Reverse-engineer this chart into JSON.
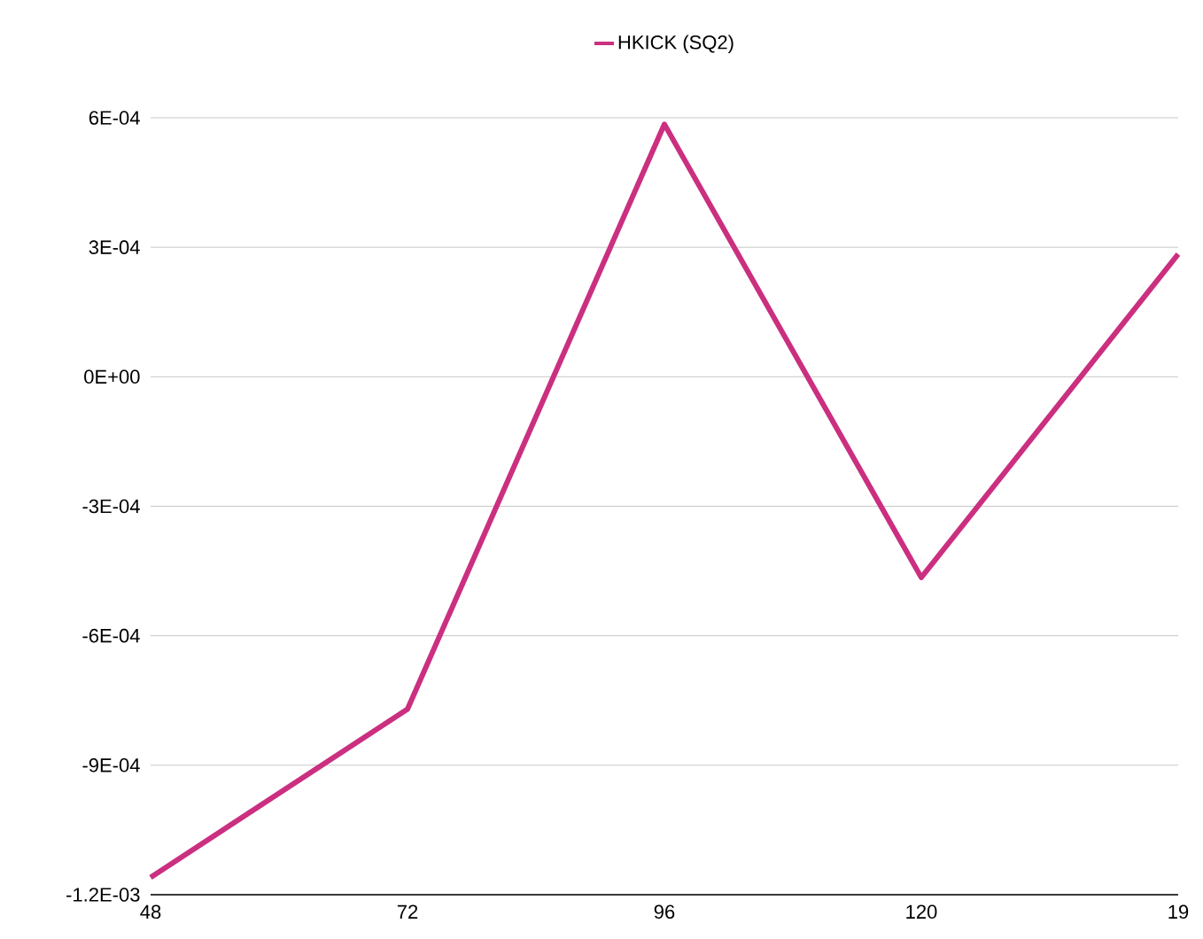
{
  "chart_data": {
    "type": "line",
    "categories": [
      "48",
      "72",
      "96",
      "120",
      "19"
    ],
    "series": [
      {
        "name": "HKICK (SQ2)",
        "color": "#cb2f80",
        "values": [
          -0.00116,
          -0.00077,
          0.000585,
          -0.000465,
          0.000284
        ]
      }
    ],
    "ylim": [
      -0.0012,
      0.0006
    ],
    "yticks": [
      {
        "value": -0.0012,
        "label": "-1.2E-03"
      },
      {
        "value": -0.0009,
        "label": "-9E-04"
      },
      {
        "value": -0.0006,
        "label": "-6E-04"
      },
      {
        "value": -0.0003,
        "label": "-3E-04"
      },
      {
        "value": 0,
        "label": "0E+00"
      },
      {
        "value": 0.0003,
        "label": "3E-04"
      },
      {
        "value": 0.0006,
        "label": "6E-04"
      }
    ],
    "grid": "y",
    "legend": "top",
    "marker": "none",
    "line_style": "solid"
  }
}
